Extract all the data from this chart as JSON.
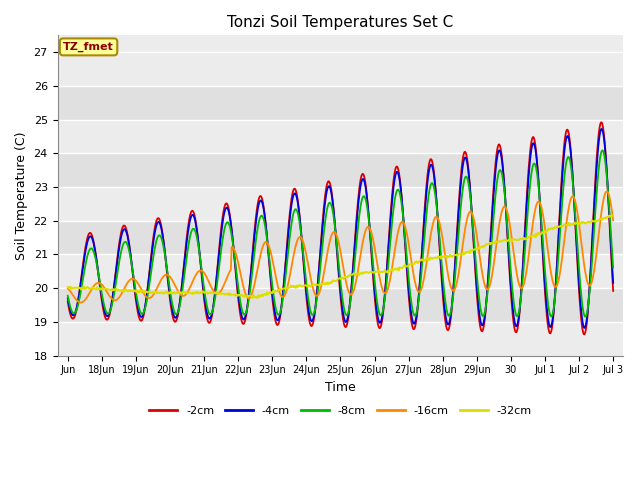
{
  "title": "Tonzi Soil Temperatures Set C",
  "xlabel": "Time",
  "ylabel": "Soil Temperature (C)",
  "ylim": [
    18.0,
    27.5
  ],
  "yticks": [
    18.0,
    19.0,
    20.0,
    21.0,
    22.0,
    23.0,
    24.0,
    25.0,
    26.0,
    27.0
  ],
  "colors": {
    "-2cm": "#dd0000",
    "-4cm": "#0000dd",
    "-8cm": "#00bb00",
    "-16cm": "#ff8800",
    "-32cm": "#dddd00"
  },
  "legend_label": "TZ_fmet",
  "annotation_bg": "#ffff99",
  "annotation_border": "#aa8800",
  "annotation_text_color": "#880000",
  "fig_bg": "#ffffff",
  "plot_bg_light": "#ececec",
  "plot_bg_dark": "#e0e0e0",
  "grid_color": "#ffffff",
  "tick_labels": [
    "Jun",
    "18Jun",
    "19Jun",
    "20Jun",
    "21Jun",
    "22Jun",
    "23Jun",
    "24Jun",
    "25Jun",
    "26Jun",
    "27Jun",
    "28Jun",
    "29Jun",
    "30",
    "Jul 1",
    "Jul 2",
    "Jul 3"
  ]
}
